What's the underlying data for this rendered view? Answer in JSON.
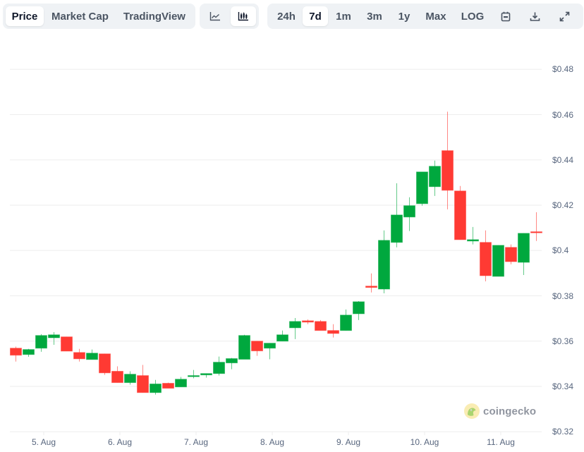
{
  "toolbar": {
    "view_tabs": [
      {
        "label": "Price",
        "active": true
      },
      {
        "label": "Market Cap",
        "active": false
      },
      {
        "label": "TradingView",
        "active": false
      }
    ],
    "chart_type": [
      {
        "icon": "line-chart-icon",
        "active": false
      },
      {
        "icon": "candlestick-chart-icon",
        "active": true
      }
    ],
    "ranges": [
      {
        "label": "24h",
        "active": false
      },
      {
        "label": "7d",
        "active": true
      },
      {
        "label": "1m",
        "active": false
      },
      {
        "label": "3m",
        "active": false
      },
      {
        "label": "1y",
        "active": false
      },
      {
        "label": "Max",
        "active": false
      },
      {
        "label": "LOG",
        "active": false
      }
    ],
    "actions": [
      "calendar-icon",
      "download-icon",
      "expand-icon"
    ]
  },
  "watermark": {
    "text": "coingecko"
  },
  "colors": {
    "up": "#00a83e",
    "down": "#ff3a33",
    "grid": "#eeeeee",
    "axis_text": "#58667e"
  },
  "chart_data": {
    "type": "candlestick",
    "title": "",
    "xlabel": "",
    "ylabel": "",
    "ylim": [
      0.32,
      0.48
    ],
    "grid": true,
    "y_ticks": [
      "$0.32",
      "$0.34",
      "$0.36",
      "$0.38",
      "$0.4",
      "$0.42",
      "$0.44",
      "$0.46",
      "$0.48"
    ],
    "y_tick_values": [
      0.32,
      0.34,
      0.36,
      0.38,
      0.4,
      0.42,
      0.44,
      0.46,
      0.48
    ],
    "x_ticks": [
      "5. Aug",
      "6. Aug",
      "7. Aug",
      "8. Aug",
      "9. Aug",
      "10. Aug",
      "11. Aug"
    ],
    "candle_interval": "4h",
    "candles": [
      {
        "o": 0.3569,
        "h": 0.3576,
        "l": 0.351,
        "c": 0.3538
      },
      {
        "o": 0.3541,
        "h": 0.3566,
        "l": 0.3531,
        "c": 0.3563
      },
      {
        "o": 0.3569,
        "h": 0.3631,
        "l": 0.3553,
        "c": 0.3625
      },
      {
        "o": 0.3615,
        "h": 0.364,
        "l": 0.3584,
        "c": 0.3628
      },
      {
        "o": 0.3619,
        "h": 0.3619,
        "l": 0.3556,
        "c": 0.3556
      },
      {
        "o": 0.355,
        "h": 0.3566,
        "l": 0.351,
        "c": 0.3522
      },
      {
        "o": 0.3519,
        "h": 0.3563,
        "l": 0.3519,
        "c": 0.3547
      },
      {
        "o": 0.3544,
        "h": 0.3544,
        "l": 0.3451,
        "c": 0.346
      },
      {
        "o": 0.3467,
        "h": 0.3489,
        "l": 0.3417,
        "c": 0.3417
      },
      {
        "o": 0.3417,
        "h": 0.3467,
        "l": 0.3408,
        "c": 0.3454
      },
      {
        "o": 0.3448,
        "h": 0.3495,
        "l": 0.3373,
        "c": 0.3373
      },
      {
        "o": 0.3373,
        "h": 0.3429,
        "l": 0.3364,
        "c": 0.3411
      },
      {
        "o": 0.3414,
        "h": 0.3417,
        "l": 0.3404,
        "c": 0.3392
      },
      {
        "o": 0.3398,
        "h": 0.3442,
        "l": 0.3398,
        "c": 0.3432
      },
      {
        "o": 0.3445,
        "h": 0.3473,
        "l": 0.3436,
        "c": 0.3448
      },
      {
        "o": 0.3451,
        "h": 0.3457,
        "l": 0.3439,
        "c": 0.3457
      },
      {
        "o": 0.3457,
        "h": 0.3532,
        "l": 0.3448,
        "c": 0.3507
      },
      {
        "o": 0.3504,
        "h": 0.3526,
        "l": 0.3476,
        "c": 0.3523
      },
      {
        "o": 0.352,
        "h": 0.3628,
        "l": 0.352,
        "c": 0.3625
      },
      {
        "o": 0.36,
        "h": 0.36,
        "l": 0.3535,
        "c": 0.3557
      },
      {
        "o": 0.3569,
        "h": 0.3591,
        "l": 0.352,
        "c": 0.3591
      },
      {
        "o": 0.36,
        "h": 0.3647,
        "l": 0.36,
        "c": 0.3628
      },
      {
        "o": 0.3659,
        "h": 0.3702,
        "l": 0.3609,
        "c": 0.3687
      },
      {
        "o": 0.369,
        "h": 0.3696,
        "l": 0.3675,
        "c": 0.3684
      },
      {
        "o": 0.3687,
        "h": 0.3693,
        "l": 0.3662,
        "c": 0.3647
      },
      {
        "o": 0.3647,
        "h": 0.3675,
        "l": 0.3616,
        "c": 0.3634
      },
      {
        "o": 0.3647,
        "h": 0.374,
        "l": 0.3647,
        "c": 0.3715
      },
      {
        "o": 0.3721,
        "h": 0.3777,
        "l": 0.3693,
        "c": 0.3774
      },
      {
        "o": 0.3843,
        "h": 0.3899,
        "l": 0.3815,
        "c": 0.3837
      },
      {
        "o": 0.383,
        "h": 0.4089,
        "l": 0.3811,
        "c": 0.4045
      },
      {
        "o": 0.4036,
        "h": 0.4297,
        "l": 0.4014,
        "c": 0.4157
      },
      {
        "o": 0.4148,
        "h": 0.4235,
        "l": 0.4086,
        "c": 0.4198
      },
      {
        "o": 0.4207,
        "h": 0.4344,
        "l": 0.4198,
        "c": 0.4347
      },
      {
        "o": 0.4282,
        "h": 0.4397,
        "l": 0.4241,
        "c": 0.4372
      },
      {
        "o": 0.4441,
        "h": 0.4613,
        "l": 0.4182,
        "c": 0.4266
      },
      {
        "o": 0.4263,
        "h": 0.4285,
        "l": 0.4048,
        "c": 0.4048
      },
      {
        "o": 0.4042,
        "h": 0.4104,
        "l": 0.4027,
        "c": 0.4048
      },
      {
        "o": 0.4036,
        "h": 0.4089,
        "l": 0.3864,
        "c": 0.3889
      },
      {
        "o": 0.3886,
        "h": 0.4023,
        "l": 0.3886,
        "c": 0.4023
      },
      {
        "o": 0.4014,
        "h": 0.4027,
        "l": 0.3939,
        "c": 0.3951
      },
      {
        "o": 0.3948,
        "h": 0.4076,
        "l": 0.3892,
        "c": 0.4076
      },
      {
        "o": 0.4083,
        "h": 0.4169,
        "l": 0.4042,
        "c": 0.4079
      }
    ]
  }
}
